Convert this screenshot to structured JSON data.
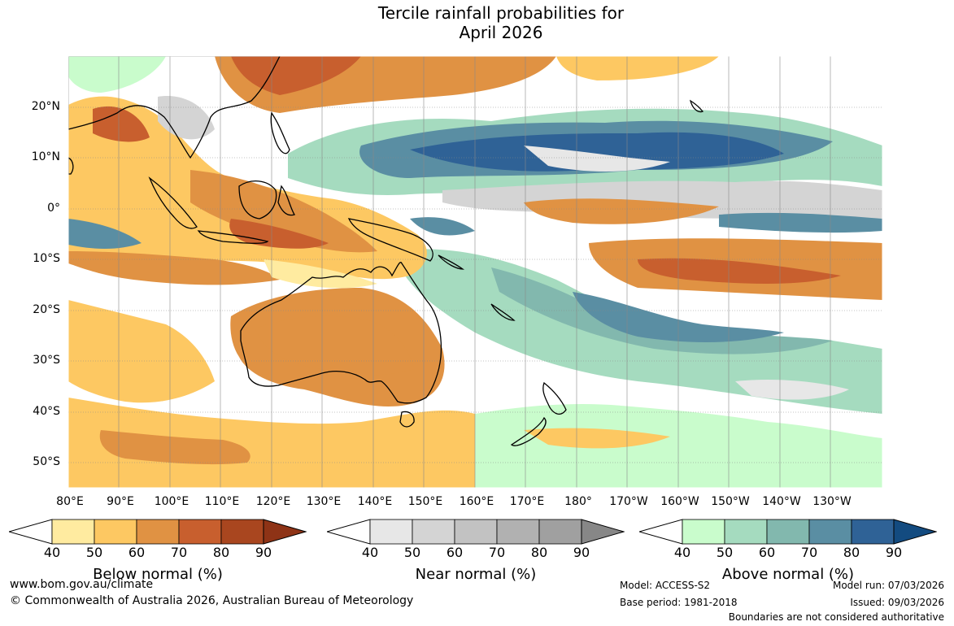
{
  "title": {
    "line1": "Tercile rainfall probabilities for",
    "line2": "April 2026"
  },
  "map": {
    "lat_labels": [
      "20°N",
      "10°N",
      "0°",
      "10°S",
      "20°S",
      "30°S",
      "40°S",
      "50°S"
    ],
    "lon_labels": [
      "80°E",
      "90°E",
      "100°E",
      "110°E",
      "120°E",
      "130°E",
      "140°E",
      "150°E",
      "160°E",
      "170°E",
      "180°",
      "170°W",
      "160°W",
      "150°W",
      "140°W",
      "130°W"
    ]
  },
  "legends": [
    {
      "title": "Below normal (%)",
      "ticks": [
        "40",
        "50",
        "60",
        "70",
        "80",
        "90"
      ],
      "colors": [
        "#ffffff",
        "#ffeba0",
        "#fdc862",
        "#e09243",
        "#c85f2e",
        "#a9461f",
        "#8e3316"
      ]
    },
    {
      "title": "Near normal (%)",
      "ticks": [
        "40",
        "50",
        "60",
        "70",
        "80",
        "90"
      ],
      "colors": [
        "#ffffff",
        "#e7e7e7",
        "#d4d4d4",
        "#c2c2c2",
        "#b1b1b1",
        "#a0a0a0",
        "#878787"
      ]
    },
    {
      "title": "Above normal (%)",
      "ticks": [
        "40",
        "50",
        "60",
        "70",
        "80",
        "90"
      ],
      "colors": [
        "#ffffff",
        "#c9fccc",
        "#a5dbbf",
        "#82b8ae",
        "#5a8ea3",
        "#2f6296",
        "#134b80"
      ]
    }
  ],
  "footer": {
    "website": "www.bom.gov.au/climate",
    "copyright": "© Commonwealth of Australia 2026, Australian Bureau of Meteorology",
    "model": "Model: ACCESS-S2",
    "base_period": "Base period: 1981-2018",
    "model_run": "Model run: 07/03/2026",
    "issued": "Issued: 09/03/2026",
    "disclaimer": "Boundaries are not considered authoritative"
  }
}
